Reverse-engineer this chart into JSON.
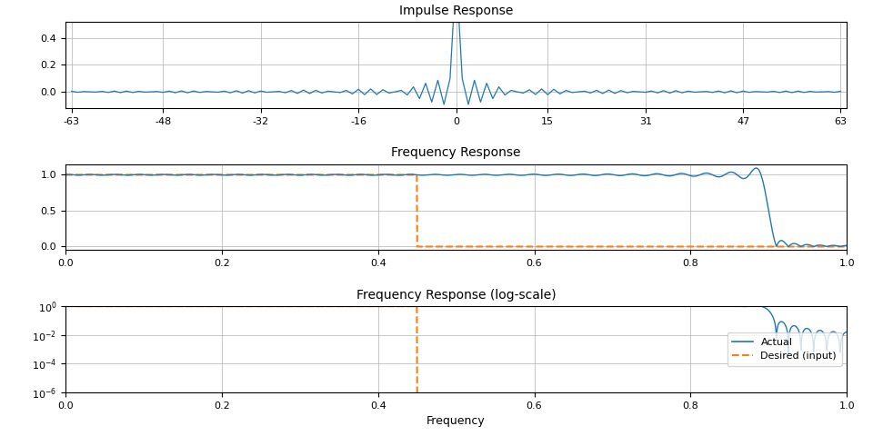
{
  "N": 127,
  "cutoff": 0.45,
  "title1": "Impulse Response",
  "title2": "Frequency Response",
  "title3": "Frequency Response (log-scale)",
  "xlabel": "Frequency",
  "legend_actual": "Actual",
  "legend_desired": "Desired (input)",
  "line_color": "#1f77b4",
  "desired_color": "#ff7f0e",
  "xticks1": [
    -63,
    -48,
    -32,
    -16,
    0,
    15,
    31,
    47,
    63
  ],
  "xtick_labels1": [
    "-63",
    "-48",
    "-32",
    "-16",
    "0",
    "15",
    "31",
    "47",
    "63"
  ],
  "xticks2": [
    0.0,
    0.2,
    0.4,
    0.6,
    0.8,
    1.0
  ],
  "background_color": "#ffffff",
  "grid_color": "#b0b0b0"
}
